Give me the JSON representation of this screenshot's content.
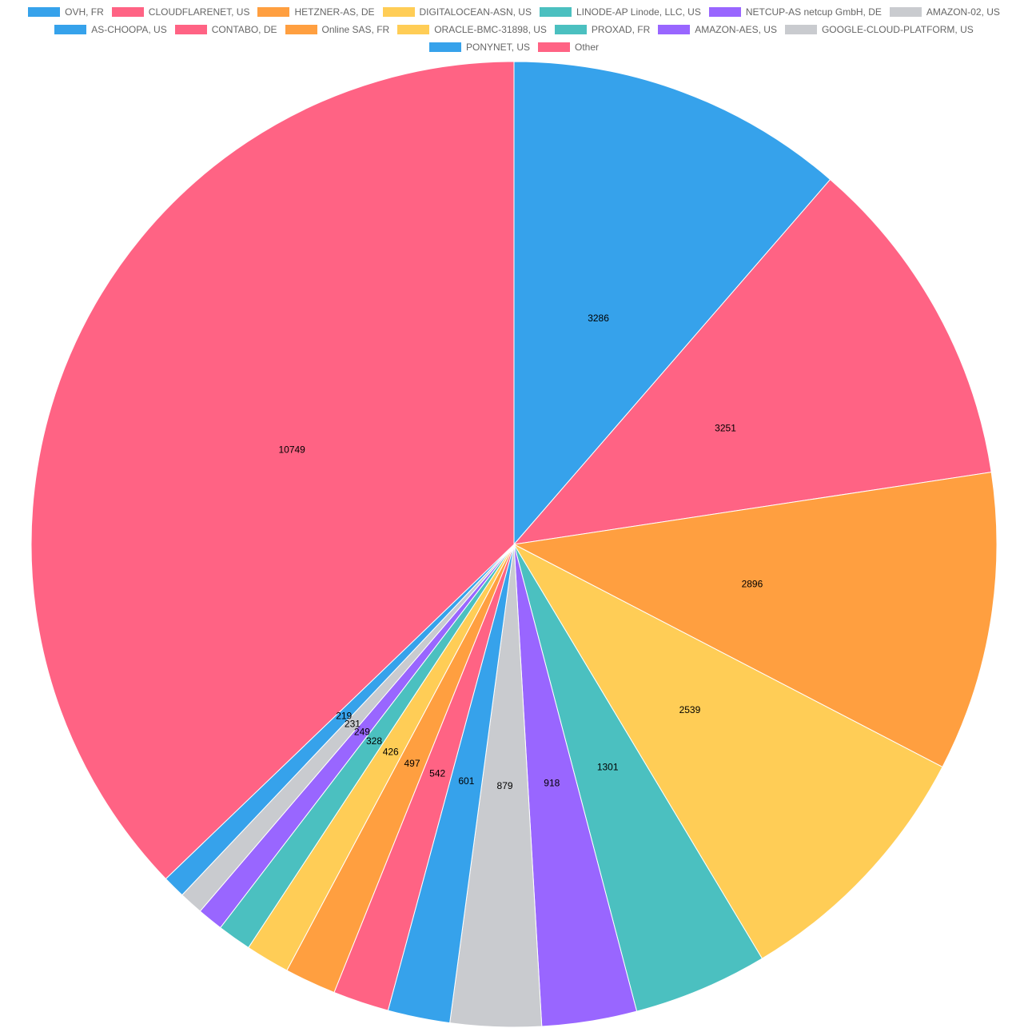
{
  "chart_data": {
    "type": "pie",
    "categories": [
      "OVH, FR",
      "CLOUDFLARENET, US",
      "HETZNER-AS, DE",
      "DIGITALOCEAN-ASN, US",
      "LINODE-AP Linode, LLC, US",
      "NETCUP-AS netcup GmbH, DE",
      "AMAZON-02, US",
      "AS-CHOOPA, US",
      "CONTABO, DE",
      "Online SAS, FR",
      "ORACLE-BMC-31898, US",
      "PROXAD, FR",
      "AMAZON-AES, US",
      "GOOGLE-CLOUD-PLATFORM, US",
      "PONYNET, US",
      "Other"
    ],
    "values": [
      3286,
      3251,
      2896,
      2539,
      1301,
      918,
      879,
      601,
      542,
      497,
      426,
      328,
      249,
      231,
      219,
      10749
    ],
    "labels": [
      "3286",
      "3251",
      "2896",
      "2539",
      "1301",
      "918",
      "879",
      "601",
      "542",
      "497",
      "426",
      "328",
      "249",
      "231",
      "219",
      "10749"
    ],
    "colors": [
      "#36a2eb",
      "#ff6384",
      "#ff9f40",
      "#ffcd56",
      "#4bc0c0",
      "#9966ff",
      "#c9cbcf",
      "#36a2eb",
      "#ff6384",
      "#ff9f40",
      "#ffcd56",
      "#4bc0c0",
      "#9966ff",
      "#c9cbcf",
      "#36a2eb",
      "#ff6384"
    ],
    "title": "",
    "legend_position": "top",
    "start_angle": "top",
    "direction": "clockwise"
  }
}
